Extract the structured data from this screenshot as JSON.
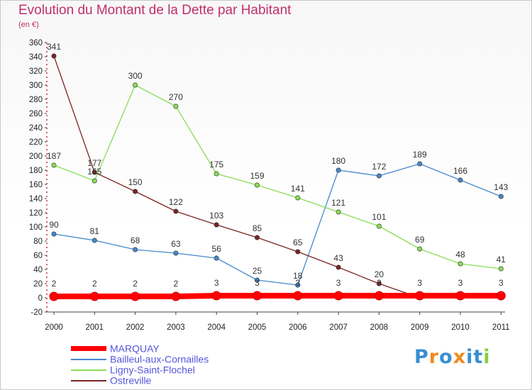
{
  "chart_data": {
    "type": "line",
    "title": "Evolution du Montant de la Dette par Habitant",
    "ylabel": "(en €)",
    "xlabel": "",
    "x": [
      "2000",
      "2001",
      "2002",
      "2003",
      "2004",
      "2005",
      "2006",
      "2007",
      "2008",
      "2009",
      "2010",
      "2011"
    ],
    "ylim": [
      -20,
      360
    ],
    "yticks": [
      -20,
      0,
      20,
      40,
      60,
      80,
      100,
      120,
      140,
      160,
      180,
      200,
      220,
      240,
      260,
      280,
      300,
      320,
      340,
      360
    ],
    "grid": false,
    "legend_position": "bottom-left",
    "series": [
      {
        "name": "MARQUAY",
        "color": "#ff0000",
        "values": [
          2,
          2,
          2,
          2,
          3,
          3,
          3,
          3,
          3,
          3,
          3,
          3
        ],
        "labels": [
          "2",
          "2",
          "2",
          "2",
          "3",
          "3",
          "3",
          "3",
          "3",
          "3",
          "3",
          "3"
        ]
      },
      {
        "name": "Bailleul-aux-Cornailles",
        "color": "#4488cc",
        "values": [
          90,
          81,
          68,
          63,
          56,
          25,
          18,
          180,
          172,
          189,
          166,
          143
        ],
        "labels": [
          "90",
          "81",
          "68",
          "63",
          "56",
          "25",
          "18",
          "180",
          "172",
          "189",
          "166",
          "143"
        ]
      },
      {
        "name": "Ligny-Saint-Flochel",
        "color": "#88dd55",
        "values": [
          187,
          165,
          300,
          270,
          175,
          159,
          141,
          121,
          101,
          69,
          48,
          41
        ],
        "labels": [
          "187",
          "165",
          "300",
          "270",
          "175",
          "159",
          "141",
          "121",
          "101",
          "69",
          "48",
          "41"
        ]
      },
      {
        "name": "Ostreville",
        "color": "#7a2424",
        "values": [
          341,
          177,
          150,
          122,
          103,
          85,
          65,
          43,
          20,
          0,
          0,
          0
        ],
        "labels": [
          "341",
          "177",
          "150",
          "122",
          "103",
          "85",
          "65",
          "43",
          "20",
          "",
          "",
          ""
        ]
      }
    ]
  },
  "brand": {
    "text": "Proxiti",
    "letter_colors": [
      "#3a8fd0",
      "#f08a1c",
      "#3a8fd0",
      "#f08a1c",
      "#3a8fd0",
      "#3a8fd0",
      "#88cc44"
    ]
  }
}
